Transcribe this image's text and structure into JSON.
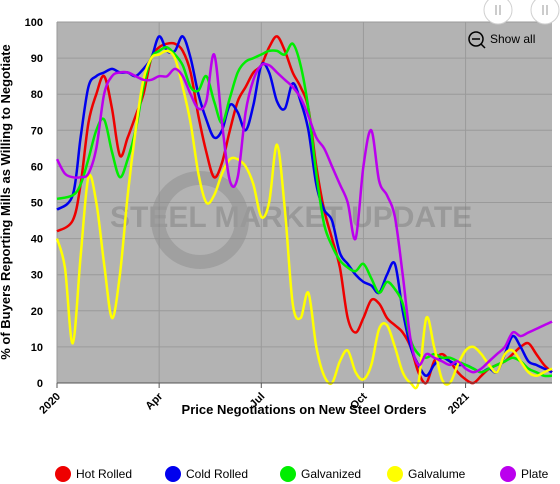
{
  "chart_data": {
    "type": "line",
    "xlabel": "Price Negotiations on New Steel Orders",
    "ylabel": "% of Buyers Reporting Mills as Willing to Negotiate",
    "ylim": [
      0,
      100
    ],
    "y_ticks": [
      "0",
      "10",
      "20",
      "30",
      "40",
      "50",
      "60",
      "70",
      "80",
      "90",
      "100"
    ],
    "x_ticks": [
      {
        "label": "2020",
        "pos": 0
      },
      {
        "label": "Apr",
        "pos": 13
      },
      {
        "label": "Jul",
        "pos": 26
      },
      {
        "label": "Oct",
        "pos": 39
      },
      {
        "label": "2021",
        "pos": 52
      }
    ],
    "x_range": [
      0,
      63
    ],
    "grid": true,
    "legend_position": "bottom",
    "watermark": "STEEL MARKET UPDATE",
    "show_all_label": "Show all",
    "series": [
      {
        "name": "Hot Rolled",
        "color": "#ee0000",
        "x": [
          0,
          2,
          3,
          4,
          5,
          6,
          7,
          8,
          9,
          10,
          11,
          12,
          13,
          14,
          15,
          16,
          17,
          18,
          19,
          20,
          21,
          22,
          23,
          24,
          25,
          26,
          27,
          28,
          29,
          30,
          31,
          32,
          33,
          34,
          35,
          36,
          37,
          38,
          39,
          40,
          41,
          42,
          43,
          44,
          45,
          46,
          47,
          48,
          49,
          50,
          51,
          52,
          53,
          54,
          55,
          56,
          57,
          58,
          59,
          60,
          61,
          62,
          63
        ],
        "y": [
          42,
          45,
          55,
          72,
          80,
          85,
          76,
          63,
          68,
          74,
          80,
          90,
          93,
          94,
          94,
          92,
          86,
          74,
          64,
          57,
          61,
          70,
          78,
          82,
          86,
          88,
          93,
          96,
          92,
          86,
          82,
          76,
          60,
          48,
          40,
          32,
          18,
          14,
          18,
          23,
          22,
          18,
          16,
          14,
          10,
          3,
          0,
          6,
          8,
          6,
          3,
          1,
          0,
          2,
          4,
          5,
          6,
          8,
          10,
          11,
          8,
          5,
          3
        ]
      },
      {
        "name": "Cold Rolled",
        "color": "#0000ee",
        "x": [
          0,
          2,
          3,
          4,
          5,
          6,
          7,
          8,
          9,
          10,
          11,
          12,
          13,
          14,
          15,
          16,
          17,
          18,
          19,
          20,
          21,
          22,
          23,
          24,
          25,
          26,
          27,
          28,
          29,
          30,
          31,
          32,
          33,
          34,
          35,
          36,
          37,
          38,
          39,
          40,
          41,
          42,
          43,
          44,
          45,
          46,
          47,
          48,
          49,
          50,
          51,
          52,
          53,
          54,
          55,
          56,
          57,
          58,
          59,
          60,
          61,
          62,
          63
        ],
        "y": [
          48,
          52,
          68,
          82,
          85,
          86,
          87,
          86,
          86,
          85,
          87,
          90,
          96,
          92,
          92,
          96,
          90,
          80,
          73,
          68,
          70,
          77,
          75,
          70,
          77,
          88,
          86,
          78,
          76,
          83,
          78,
          70,
          55,
          48,
          45,
          36,
          33,
          30,
          28,
          27,
          25,
          30,
          33,
          20,
          10,
          5,
          2,
          5,
          7,
          6,
          5,
          5,
          4,
          3,
          4,
          3,
          8,
          13,
          10,
          6,
          5,
          4,
          3
        ]
      },
      {
        "name": "Galvanized",
        "color": "#00ee00",
        "x": [
          0,
          2,
          3,
          4,
          5,
          6,
          7,
          8,
          9,
          10,
          11,
          12,
          13,
          14,
          15,
          16,
          17,
          18,
          19,
          20,
          21,
          22,
          23,
          24,
          25,
          26,
          27,
          28,
          29,
          30,
          31,
          32,
          33,
          34,
          35,
          36,
          37,
          38,
          39,
          40,
          41,
          42,
          43,
          44,
          45,
          46,
          47,
          48,
          49,
          50,
          51,
          52,
          53,
          54,
          55,
          56,
          57,
          58,
          59,
          60,
          61,
          62,
          63
        ],
        "y": [
          51,
          52,
          55,
          62,
          70,
          73,
          64,
          57,
          62,
          70,
          82,
          90,
          92,
          93,
          91,
          88,
          82,
          81,
          85,
          78,
          72,
          79,
          86,
          89,
          90,
          91,
          92,
          92,
          91,
          94,
          88,
          76,
          58,
          44,
          38,
          34,
          32,
          31,
          33,
          29,
          25,
          28,
          26,
          22,
          12,
          8,
          7,
          8,
          7,
          7,
          6,
          5,
          4,
          3,
          4,
          5,
          6,
          7,
          6,
          4,
          3,
          2,
          2
        ]
      },
      {
        "name": "Galvalume",
        "color": "#ffff00",
        "x": [
          0,
          1,
          2,
          3,
          4,
          5,
          6,
          7,
          8,
          9,
          10,
          11,
          12,
          13,
          14,
          15,
          16,
          17,
          18,
          19,
          20,
          21,
          22,
          23,
          24,
          25,
          26,
          27,
          28,
          29,
          30,
          31,
          32,
          33,
          34,
          35,
          36,
          37,
          38,
          39,
          40,
          41,
          42,
          43,
          44,
          45,
          46,
          47,
          48,
          49,
          50,
          51,
          52,
          53,
          54,
          55,
          56,
          57,
          58,
          59,
          60,
          61,
          62,
          63
        ],
        "y": [
          40,
          32,
          11,
          35,
          57,
          50,
          33,
          18,
          30,
          52,
          70,
          84,
          90,
          91,
          92,
          90,
          82,
          72,
          58,
          50,
          52,
          58,
          62,
          62,
          60,
          55,
          46,
          50,
          66,
          48,
          22,
          18,
          25,
          10,
          2,
          0,
          6,
          9,
          3,
          1,
          5,
          15,
          16,
          10,
          3,
          0,
          0,
          18,
          10,
          1,
          0,
          5,
          9,
          10,
          8,
          5,
          3,
          8,
          9,
          6,
          3,
          2,
          3,
          4
        ]
      },
      {
        "name": "Plate",
        "color": "#bb00ee",
        "x": [
          0,
          1,
          2,
          3,
          4,
          5,
          6,
          7,
          8,
          9,
          10,
          11,
          12,
          13,
          14,
          15,
          16,
          17,
          18,
          19,
          20,
          21,
          22,
          23,
          24,
          25,
          26,
          27,
          28,
          29,
          30,
          31,
          32,
          33,
          34,
          35,
          36,
          37,
          38,
          39,
          40,
          41,
          42,
          43,
          44,
          45,
          46,
          47,
          48,
          49,
          50,
          51,
          52,
          53,
          54,
          55,
          56,
          57,
          58,
          59,
          60,
          61,
          62,
          63
        ],
        "y": [
          62,
          58,
          57,
          57,
          58,
          65,
          80,
          85,
          86,
          86,
          85,
          84,
          84,
          85,
          85,
          87,
          85,
          80,
          76,
          78,
          91,
          72,
          56,
          57,
          75,
          84,
          88,
          88,
          86,
          84,
          82,
          79,
          74,
          68,
          65,
          60,
          55,
          50,
          40,
          60,
          70,
          56,
          52,
          46,
          30,
          12,
          5,
          8,
          7,
          6,
          5,
          6,
          4,
          3,
          4,
          6,
          8,
          10,
          14,
          13,
          14,
          15,
          16,
          17
        ]
      }
    ]
  }
}
